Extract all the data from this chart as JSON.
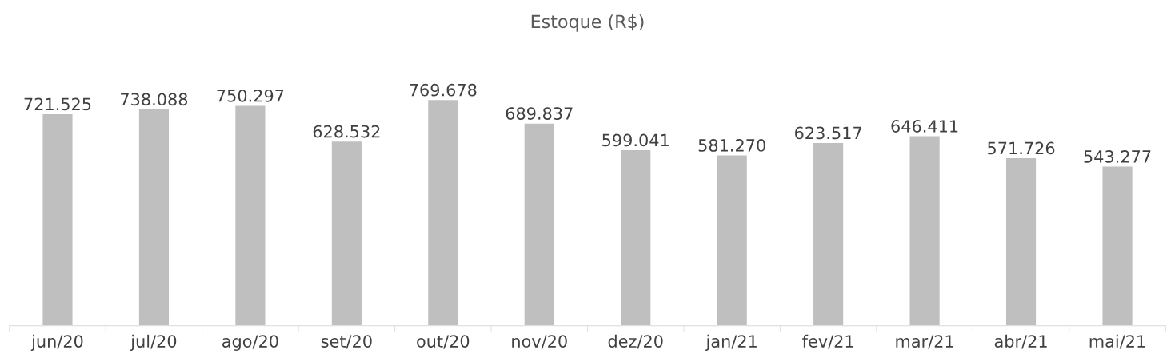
{
  "chart_data": {
    "type": "bar",
    "title": "Estoque (R$)",
    "categories": [
      "jun/20",
      "jul/20",
      "ago/20",
      "set/20",
      "out/20",
      "nov/20",
      "dez/20",
      "jan/21",
      "fev/21",
      "mar/21",
      "abr/21",
      "mai/21"
    ],
    "values": [
      721525,
      738088,
      750297,
      628532,
      769678,
      689837,
      599041,
      581270,
      623517,
      646411,
      571726,
      543277
    ],
    "value_labels": [
      "721.525",
      "738.088",
      "750.297",
      "628.532",
      "769.678",
      "689.837",
      "599.041",
      "581.270",
      "623.517",
      "646.411",
      "571.726",
      "543.277"
    ],
    "color": "#bfbfbf",
    "grid": false,
    "legend": false
  }
}
